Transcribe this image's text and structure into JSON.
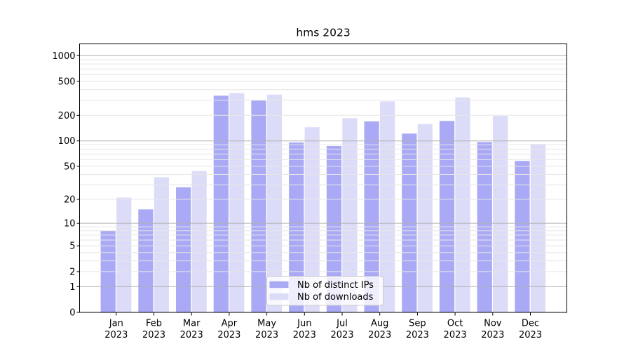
{
  "chart_data": {
    "type": "bar",
    "title": "hms 2023",
    "categories": [
      "Jan",
      "Feb",
      "Mar",
      "Apr",
      "May",
      "Jun",
      "Jul",
      "Aug",
      "Sep",
      "Oct",
      "Nov",
      "Dec"
    ],
    "xtick_year": "2023",
    "series": [
      {
        "name": "Nb of distinct IPs",
        "color": "#a9a9f5",
        "values": [
          8,
          15,
          28,
          340,
          300,
          96,
          87,
          170,
          122,
          172,
          97,
          58
        ]
      },
      {
        "name": "Nb of downloads",
        "color": "#dcdcf8",
        "values": [
          21,
          37,
          44,
          365,
          350,
          145,
          185,
          292,
          158,
          325,
          197,
          92
        ]
      }
    ],
    "yscale": "log1p",
    "ylim": [
      0,
      1375
    ],
    "yticks": [
      0,
      1,
      2,
      5,
      10,
      20,
      50,
      100,
      200,
      500,
      1000
    ],
    "grid": {
      "enabled": true,
      "major_at": [
        1,
        10,
        100,
        1000
      ],
      "minor_mantissas": [
        2,
        3,
        4,
        5,
        6,
        7,
        8,
        9
      ]
    },
    "legend": {
      "location": "lower center",
      "entries": [
        "Nb of distinct IPs",
        "Nb of downloads"
      ]
    },
    "colors": {
      "bar_distinct_ips": "#a9a9f5",
      "bar_downloads": "#dcdcf8",
      "grid_major": "#b0b0b0",
      "grid_minor": "#e6e6e6",
      "spine": "#000000",
      "text": "#000000",
      "legend_border": "#cccccc",
      "background": "#ffffff"
    }
  }
}
